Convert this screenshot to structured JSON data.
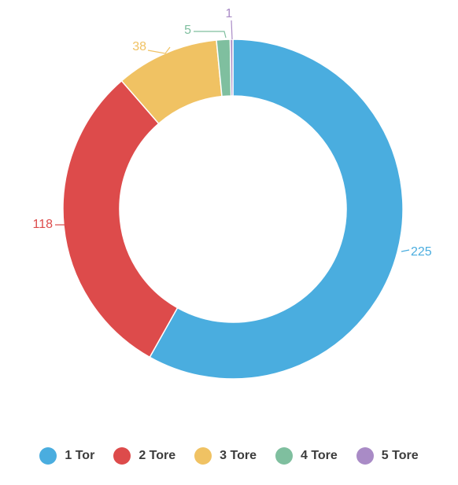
{
  "chart_data": {
    "type": "pie",
    "variant": "donut",
    "categories": [
      "1 Tor",
      "2 Tore",
      "3 Tore",
      "4 Tore",
      "5 Tore"
    ],
    "values": [
      225,
      118,
      38,
      5,
      1
    ],
    "colors": [
      "#4aaddf",
      "#dd4b4b",
      "#f0c263",
      "#7fbf9f",
      "#a98bc6"
    ],
    "data_labels": [
      "225",
      "118",
      "38",
      "5",
      "1"
    ],
    "legend_placement": "bottom",
    "start_angle": "top",
    "direction": "clockwise"
  },
  "legend": {
    "items": [
      {
        "label": "1 Tor",
        "color": "#4aaddf"
      },
      {
        "label": "2 Tore",
        "color": "#dd4b4b"
      },
      {
        "label": "3 Tore",
        "color": "#f0c263"
      },
      {
        "label": "4 Tore",
        "color": "#7fbf9f"
      },
      {
        "label": "5 Tore",
        "color": "#a98bc6"
      }
    ]
  }
}
